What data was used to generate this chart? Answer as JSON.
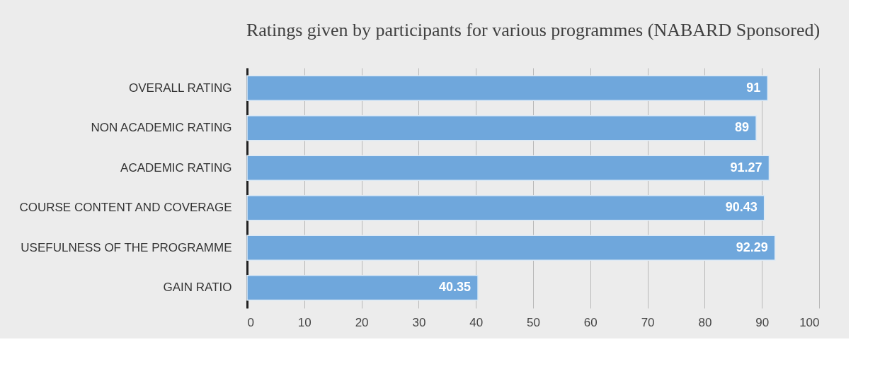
{
  "chart_data": {
    "type": "bar",
    "orientation": "horizontal",
    "title": "Ratings given by participants for various programmes (NABARD Sponsored)",
    "categories": [
      "OVERALL RATING",
      "NON ACADEMIC RATING",
      "ACADEMIC RATING",
      "COURSE CONTENT AND COVERAGE",
      "USEFULNESS OF THE PROGRAMME",
      "GAIN RATIO"
    ],
    "values": [
      91,
      89,
      91.27,
      90.43,
      92.29,
      40.35
    ],
    "color": "#6fa7dc",
    "xlim": [
      0,
      100
    ],
    "xticks": [
      0,
      10,
      20,
      30,
      40,
      50,
      60,
      70,
      80,
      90,
      100
    ],
    "grid": "x",
    "data_labels": true
  }
}
